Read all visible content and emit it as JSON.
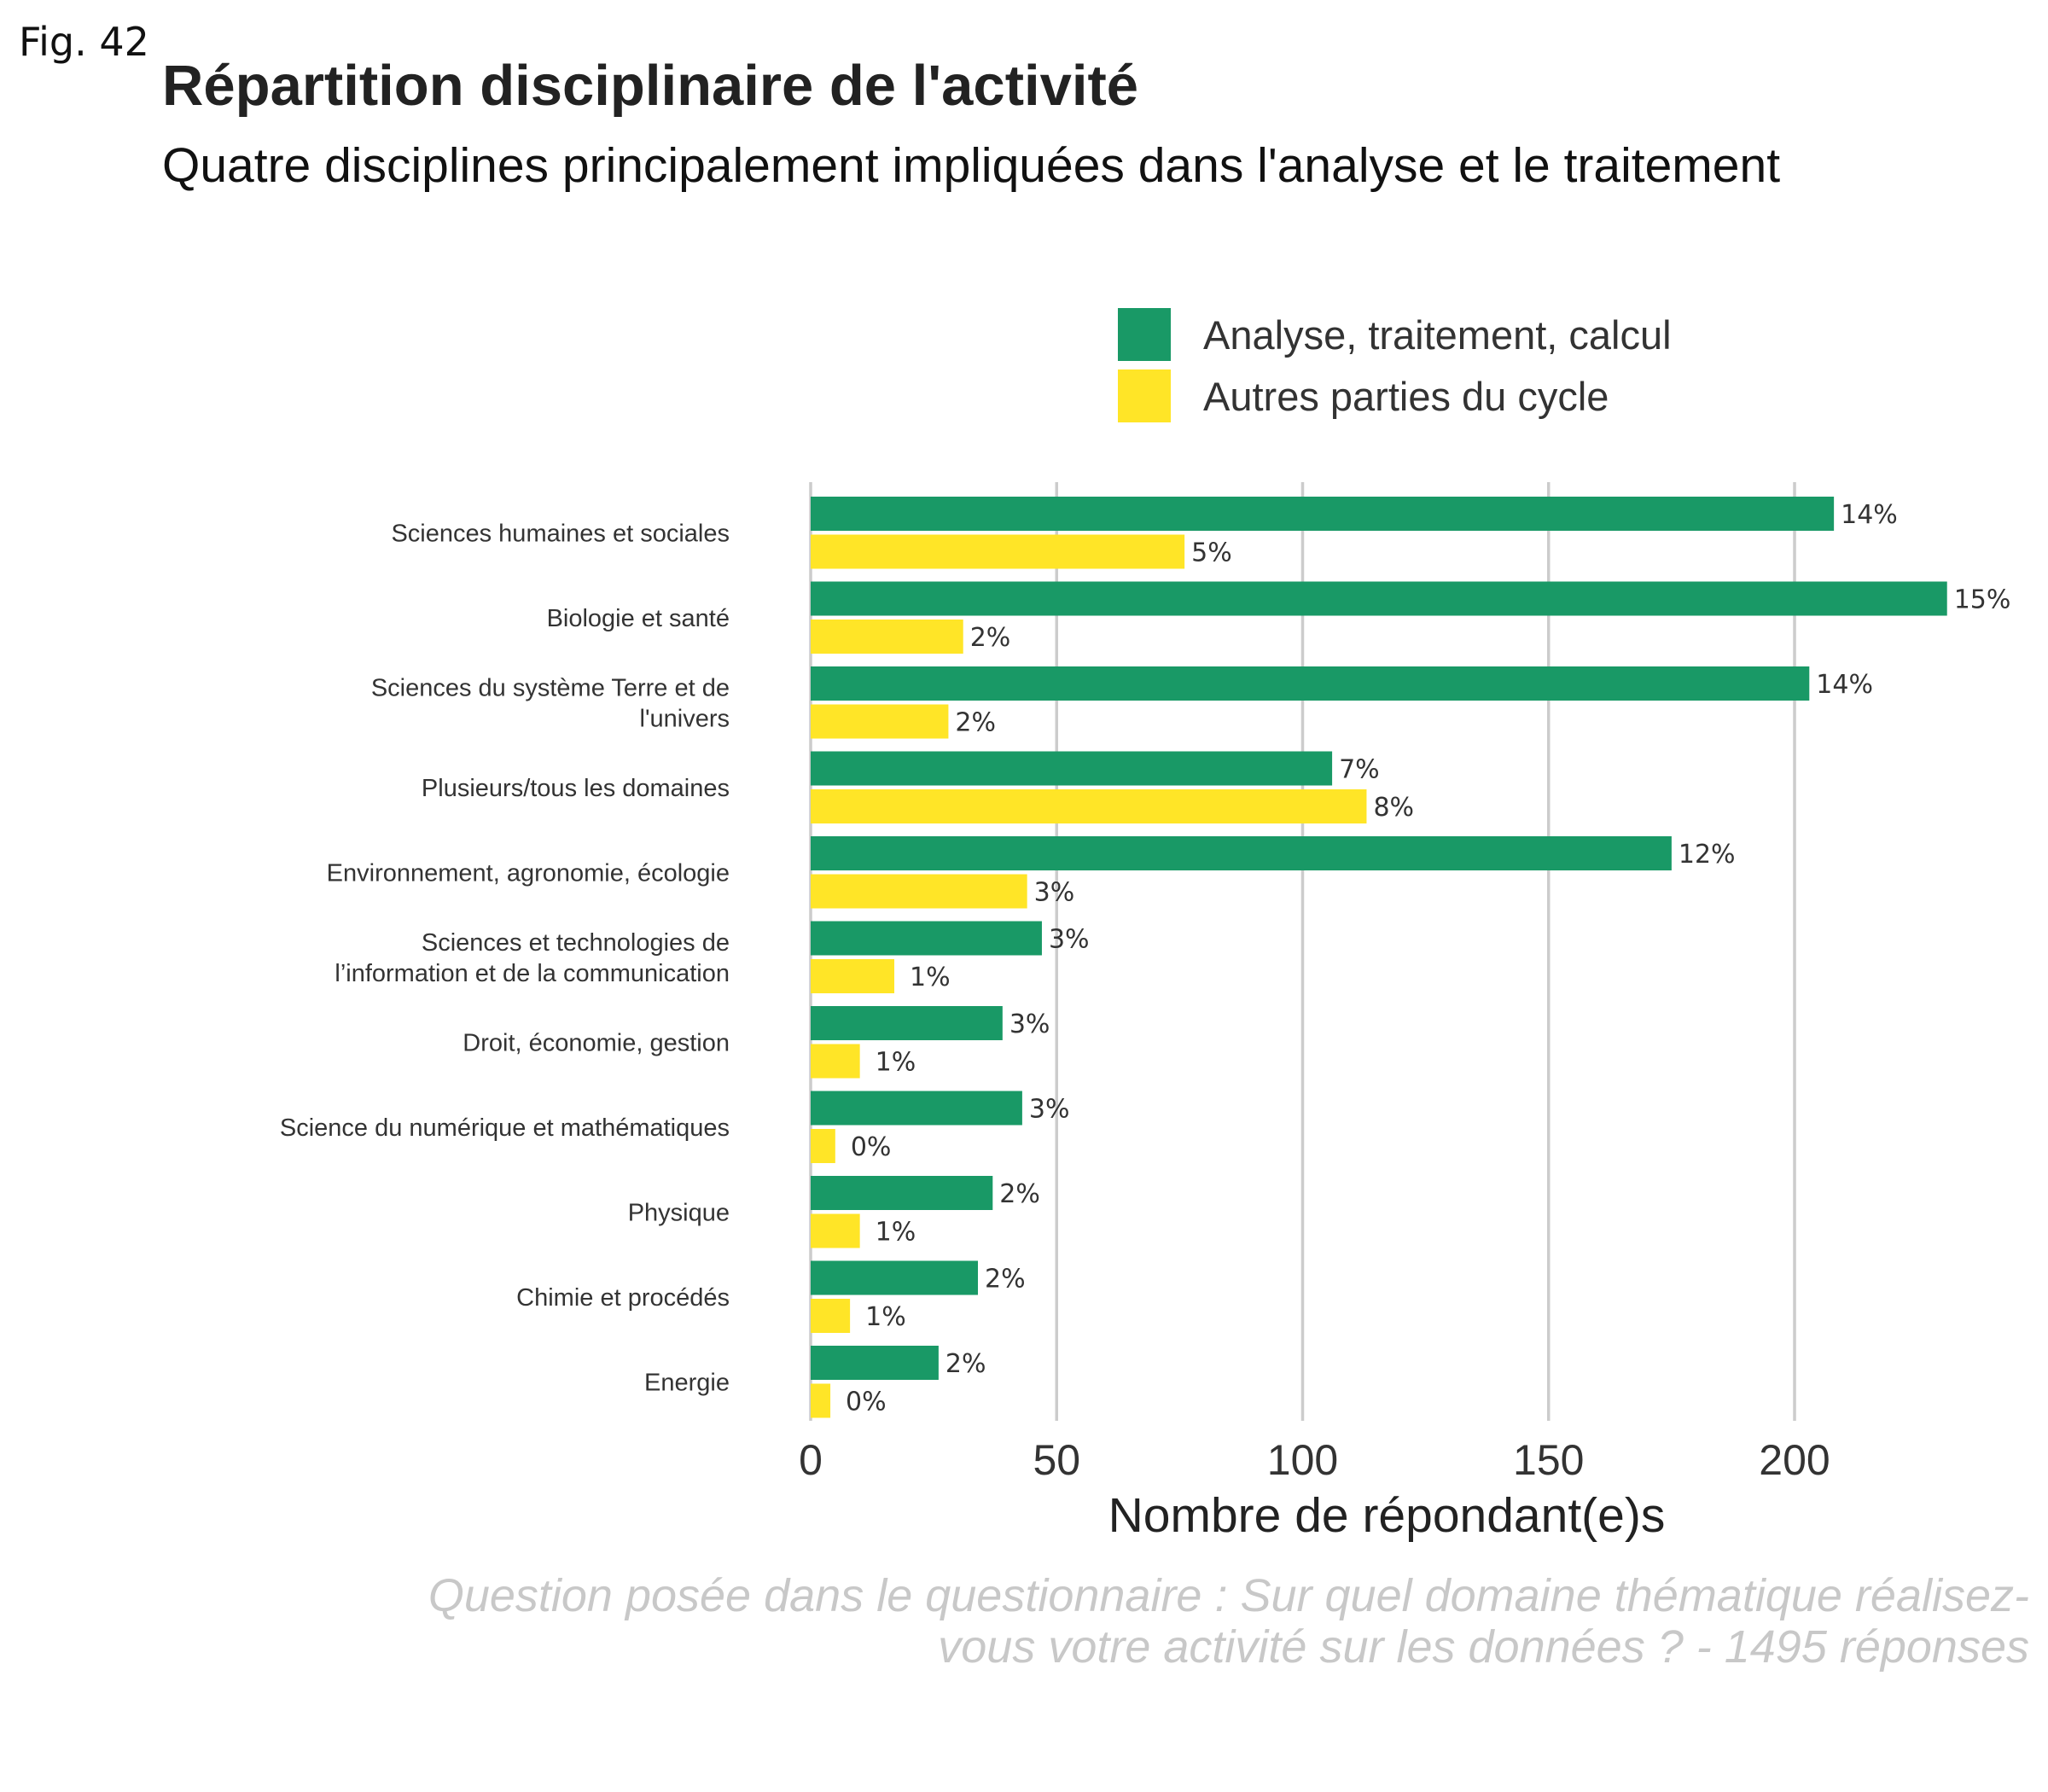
{
  "figure_label": "Fig. 42",
  "chart_data": {
    "type": "bar",
    "orientation": "horizontal",
    "title": "Répartition disciplinaire de l'activité",
    "subtitle": "Quatre disciplines principalement impliquées dans l'analyse et le traitement",
    "xlabel": "Nombre de répondant(e)s",
    "ylabel": "",
    "xlim": [
      0,
      235
    ],
    "xticks": [
      0,
      50,
      100,
      150,
      200
    ],
    "grid": "vertical",
    "legend_position": "top-right",
    "caption": "Question posée dans le questionnaire : Sur quel domaine thématique réalisez-vous votre activité sur les données ? - 1495 réponses",
    "categories": [
      [
        "Sciences humaines et sociales"
      ],
      [
        "Biologie et santé"
      ],
      [
        "Sciences du système Terre et de",
        "l'univers"
      ],
      [
        "Plusieurs/tous les domaines"
      ],
      [
        "Environnement, agronomie, écologie"
      ],
      [
        "Sciences et technologies de",
        "l’information et de la communication"
      ],
      [
        "Droit, économie, gestion"
      ],
      [
        "Science du numérique et mathématiques"
      ],
      [
        "Physique"
      ],
      [
        "Chimie et procédés"
      ],
      [
        "Energie"
      ]
    ],
    "series": [
      {
        "name": "Analyse, traitement, calcul",
        "color": "#199966",
        "values": [
          208,
          231,
          203,
          106,
          175,
          47,
          39,
          43,
          37,
          34,
          26
        ],
        "labels": [
          "14%",
          "15%",
          "14%",
          "7%",
          "12%",
          "3%",
          "3%",
          "3%",
          "2%",
          "2%",
          "2%"
        ]
      },
      {
        "name": "Autres parties du cycle",
        "color": "#FFE527",
        "values": [
          76,
          31,
          28,
          113,
          44,
          17,
          10,
          5,
          10,
          8,
          4
        ],
        "labels": [
          "5%",
          "2%",
          "2%",
          "8%",
          "3%",
          "1%",
          "1%",
          "0%",
          "1%",
          "1%",
          "0%"
        ]
      }
    ]
  }
}
